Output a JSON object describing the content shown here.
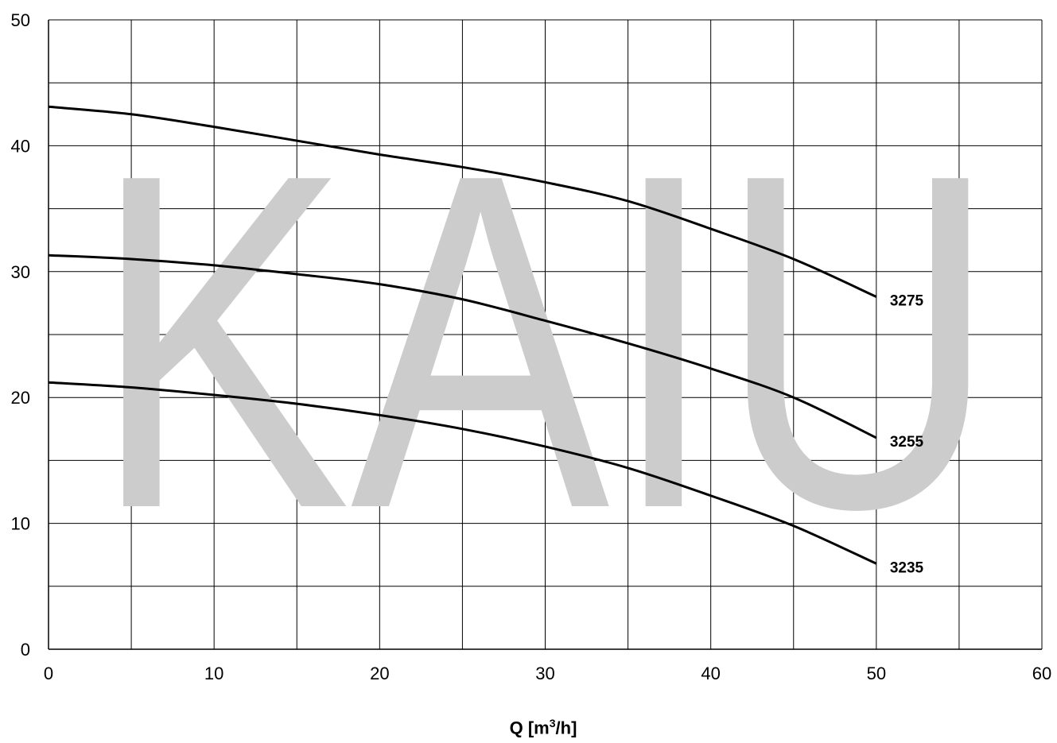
{
  "watermark": "KAIU",
  "chart_data": {
    "type": "line",
    "xlabel": "Q [m3/h]",
    "xlabel_parts": {
      "pre": "Q [m",
      "sup": "3",
      "post": "/h]"
    },
    "ylabel": "",
    "xlim": [
      0,
      60
    ],
    "ylim": [
      0,
      50
    ],
    "x_ticks": [
      "0",
      "10",
      "20",
      "30",
      "40",
      "50",
      "60"
    ],
    "y_ticks": [
      "0",
      "10",
      "20",
      "30",
      "40",
      "50"
    ],
    "grid": true,
    "grid_x_step": 5,
    "grid_y_step": 5,
    "series": [
      {
        "name": "3275",
        "x": [
          0,
          5,
          10,
          15,
          20,
          25,
          30,
          35,
          40,
          45,
          50
        ],
        "y": [
          43.1,
          42.5,
          41.5,
          40.4,
          39.3,
          38.3,
          37.1,
          35.6,
          33.4,
          31.0,
          28.0
        ]
      },
      {
        "name": "3255",
        "x": [
          0,
          5,
          10,
          15,
          20,
          25,
          30,
          35,
          40,
          45,
          50
        ],
        "y": [
          31.3,
          31.0,
          30.5,
          29.8,
          29.0,
          27.8,
          26.1,
          24.3,
          22.3,
          20.0,
          16.8
        ]
      },
      {
        "name": "3235",
        "x": [
          0,
          5,
          10,
          15,
          20,
          25,
          30,
          35,
          40,
          45,
          50
        ],
        "y": [
          21.2,
          20.8,
          20.2,
          19.5,
          18.6,
          17.5,
          16.1,
          14.4,
          12.2,
          9.8,
          6.8
        ]
      }
    ]
  }
}
